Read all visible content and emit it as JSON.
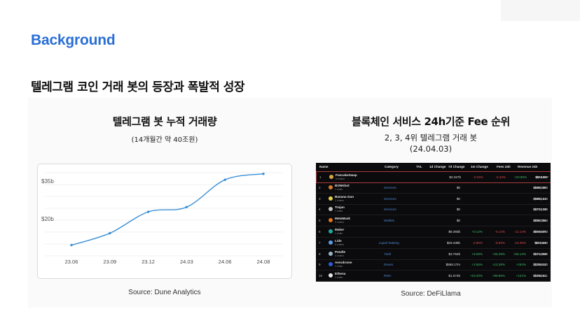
{
  "slide": {
    "title": "Background",
    "subtitle": "텔레그램 코인 거래 봇의 등장과 폭발적 성장"
  },
  "left": {
    "title": "텔레그램 봇 누적 거래량",
    "note": "(14개월간 약 40조원)",
    "source": "Source: Dune Analytics"
  },
  "chart_data": {
    "type": "line",
    "x": [
      "23.06",
      "23.09",
      "23.12",
      "24.03",
      "24.06",
      "24.08"
    ],
    "y_ticks": [
      "$35b",
      "$20b"
    ],
    "points": [
      {
        "x": 0.0,
        "y": 4.5
      },
      {
        "x": 1.0,
        "y": 9.5
      },
      {
        "x": 2.0,
        "y": 18.5
      },
      {
        "x": 3.0,
        "y": 20.5
      },
      {
        "x": 4.0,
        "y": 32.0
      },
      {
        "x": 5.0,
        "y": 34.5
      }
    ],
    "ylim": [
      0,
      35
    ],
    "grid": true,
    "color": "#3a8fd6"
  },
  "right": {
    "title": "블록체인 서비스 24h기준 Fee 순위",
    "note1": "2, 3, 4위 텔레그램 거래 봇",
    "note2": "(24.04.03)",
    "source": "Source: DeFiLlama"
  },
  "table": {
    "headers": [
      "Name",
      "Category",
      "TVL",
      "1d Change",
      "7d Change",
      "1m Change",
      "Fees 24h",
      "Revenue 24h"
    ],
    "rows": [
      {
        "rank": "1",
        "name": "PancakeSwap",
        "chains": "8 chains",
        "category": "",
        "tvl": "$2.327b",
        "d1": "-0.25%",
        "d7": "-0.43%",
        "m1": "+20.80%",
        "fees": "$2.48m",
        "revenue": "$603,087",
        "logo": "#d9a441",
        "d1neg": true,
        "d7neg": true,
        "m1neg": false
      },
      {
        "rank": "2",
        "name": "BONKbot",
        "chains": "1 chain",
        "category": "Services",
        "tvl": "$0",
        "d1": "",
        "d7": "",
        "m1": "",
        "fees": "$486,360",
        "revenue": "$486,360",
        "logo": "#d97a2b",
        "d1neg": false,
        "d7neg": false,
        "m1neg": false
      },
      {
        "rank": "3",
        "name": "Banana Gun",
        "chains": "2 chains",
        "category": "Services",
        "tvl": "$0",
        "d1": "",
        "d7": "",
        "m1": "",
        "fees": "$386,144",
        "revenue": "$386,144",
        "logo": "#e8d24a",
        "d1neg": false,
        "d7neg": false,
        "m1neg": false
      },
      {
        "rank": "4",
        "name": "Trojan",
        "chains": "1 chain",
        "category": "Services",
        "tvl": "$0",
        "d1": "",
        "d7": "",
        "m1": "",
        "fees": "$373,136",
        "revenue": "$373,136",
        "logo": "#c0c0c0",
        "d1neg": false,
        "d7neg": false,
        "m1neg": false
      },
      {
        "rank": "5",
        "name": "MetaMask",
        "chains": "9 chains",
        "category": "Wallets",
        "tvl": "$0",
        "d1": "",
        "d7": "",
        "m1": "",
        "fees": "$350,364",
        "revenue": "$350,364",
        "logo": "#e2761b",
        "d1neg": false,
        "d7neg": false,
        "m1neg": false
      },
      {
        "rank": "6",
        "name": "Maker",
        "chains": "1 chain",
        "category": "",
        "tvl": "$8.393b",
        "d1": "+0.12%",
        "d7": "-5.14%",
        "m1": "-11.14%",
        "fees": "$894,905",
        "revenue": "$348,273",
        "logo": "#1aab9b",
        "d1neg": false,
        "d7neg": true,
        "m1neg": true
      },
      {
        "rank": "7",
        "name": "Lido",
        "chains": "5 chains",
        "category": "Liquid Staking",
        "tvl": "$33.435b",
        "d1": "-2.80%",
        "d7": "-8.83%",
        "m1": "-16.36%",
        "fees": "$3.25m",
        "revenue": "$325,340",
        "logo": "#5a9ee8",
        "d1neg": true,
        "d7neg": true,
        "m1neg": true
      },
      {
        "rank": "8",
        "name": "Pendle",
        "chains": "4 chains",
        "category": "Yield",
        "tvl": "$3.764b",
        "d1": "+9.09%",
        "d7": "+35.29%",
        "m1": "+58.14%",
        "fees": "$274,358",
        "revenue": "$274,635",
        "logo": "#9ab5c8",
        "d1neg": false,
        "d7neg": false,
        "m1neg": false
      },
      {
        "rank": "9",
        "name": "Aerodrome",
        "chains": "1 chain",
        "category": "Dexes",
        "tvl": "$558.17m",
        "d1": "+3.55%",
        "d7": "+12.38%",
        "m1": "+154%",
        "fees": "$239,610",
        "revenue": "$239,610",
        "logo": "#2d5bd6",
        "d1neg": false,
        "d7neg": false,
        "m1neg": false
      },
      {
        "rank": "10",
        "name": "Ethena",
        "chains": "1 chain",
        "category": "RWA",
        "tvl": "$1.574b",
        "d1": "+19.20%",
        "d7": "+89.85%",
        "m1": "+121%",
        "fees": "$238,241",
        "revenue": "$238,241",
        "logo": "#e8e8e8",
        "d1neg": false,
        "d7neg": false,
        "m1neg": false
      }
    ]
  }
}
